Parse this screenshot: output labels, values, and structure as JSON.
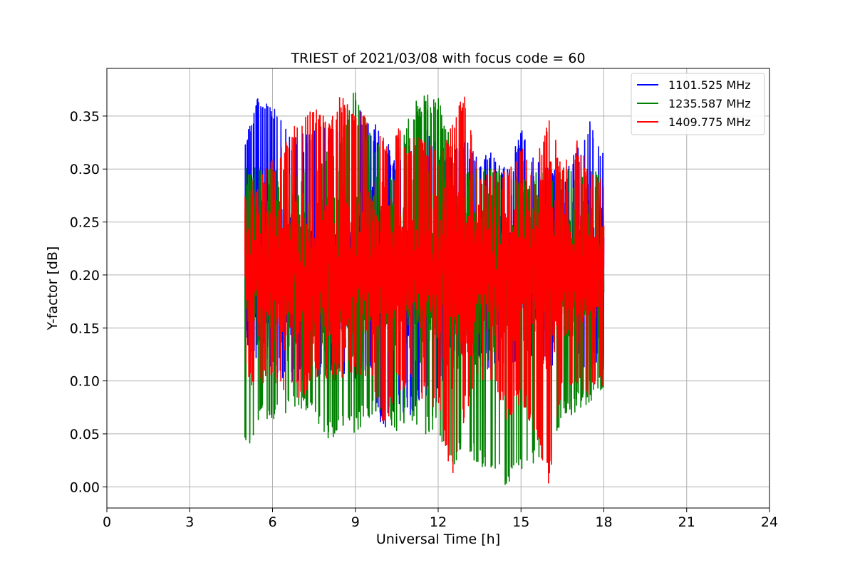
{
  "chart_data": {
    "type": "line",
    "title": "TRIEST of 2021/03/08 with focus code = 60",
    "xlabel": "Universal Time [h]",
    "ylabel": "Y-factor [dB]",
    "xlim": [
      0,
      24
    ],
    "ylim": [
      -0.02,
      0.395
    ],
    "xticks": [
      0,
      3,
      6,
      9,
      12,
      15,
      18,
      21,
      24
    ],
    "yticks": [
      0.0,
      0.05,
      0.1,
      0.15,
      0.2,
      0.25,
      0.3,
      0.35
    ],
    "grid": true,
    "legend_position": "top-right",
    "x_range_of_data": [
      5.0,
      18.0
    ],
    "series": [
      {
        "name": "1101.525 MHz",
        "color": "#0000ff",
        "x": [
          5.0,
          5.5,
          6.0,
          6.5,
          7.0,
          7.5,
          8.0,
          8.5,
          9.0,
          9.5,
          10.0,
          10.5,
          11.0,
          11.5,
          12.0,
          12.5,
          13.0,
          13.5,
          14.0,
          14.5,
          15.0,
          15.5,
          16.0,
          16.5,
          17.0,
          17.5,
          18.0
        ],
        "y_max": [
          0.33,
          0.377,
          0.362,
          0.338,
          0.333,
          0.34,
          0.342,
          0.34,
          0.362,
          0.352,
          0.33,
          0.318,
          0.335,
          0.343,
          0.32,
          0.322,
          0.33,
          0.31,
          0.318,
          0.3,
          0.338,
          0.31,
          0.3,
          0.3,
          0.317,
          0.345,
          0.315
        ],
        "y_min": [
          0.13,
          0.12,
          0.11,
          0.1,
          0.1,
          0.1,
          0.1,
          0.1,
          0.1,
          0.11,
          0.05,
          0.07,
          0.065,
          0.08,
          0.08,
          0.11,
          0.11,
          0.11,
          0.11,
          0.11,
          0.11,
          0.11,
          0.11,
          0.11,
          0.11,
          0.11,
          0.11
        ]
      },
      {
        "name": "1235.587 MHz",
        "color": "#008000",
        "x": [
          5.0,
          5.5,
          6.0,
          6.5,
          7.0,
          7.5,
          8.0,
          8.5,
          9.0,
          9.5,
          10.0,
          10.5,
          11.0,
          11.5,
          12.0,
          12.5,
          13.0,
          13.5,
          14.0,
          14.5,
          15.0,
          15.5,
          16.0,
          16.5,
          17.0,
          17.5,
          18.0
        ],
        "y_max": [
          0.3,
          0.31,
          0.3,
          0.3,
          0.3,
          0.3,
          0.32,
          0.34,
          0.377,
          0.34,
          0.32,
          0.3,
          0.36,
          0.372,
          0.37,
          0.33,
          0.3,
          0.3,
          0.3,
          0.3,
          0.29,
          0.3,
          0.3,
          0.3,
          0.3,
          0.3,
          0.3
        ],
        "y_min": [
          0.03,
          0.06,
          0.06,
          0.07,
          0.075,
          0.065,
          0.04,
          0.055,
          0.05,
          0.065,
          0.07,
          0.05,
          0.06,
          0.05,
          0.05,
          0.02,
          0.03,
          0.02,
          0.01,
          0.0,
          0.01,
          0.02,
          0.02,
          0.06,
          0.07,
          0.08,
          0.09
        ]
      },
      {
        "name": "1409.775 MHz",
        "color": "#ff0000",
        "x": [
          5.0,
          5.5,
          6.0,
          6.5,
          7.0,
          7.5,
          8.0,
          8.5,
          9.0,
          9.5,
          10.0,
          10.5,
          11.0,
          11.5,
          12.0,
          12.5,
          13.0,
          13.5,
          14.0,
          14.5,
          15.0,
          15.5,
          16.0,
          16.5,
          17.0,
          17.5,
          18.0
        ],
        "y_max": [
          0.28,
          0.3,
          0.31,
          0.33,
          0.35,
          0.36,
          0.35,
          0.372,
          0.35,
          0.36,
          0.33,
          0.34,
          0.33,
          0.33,
          0.32,
          0.35,
          0.377,
          0.3,
          0.3,
          0.3,
          0.33,
          0.3,
          0.357,
          0.3,
          0.33,
          0.3,
          0.3
        ],
        "y_min": [
          0.1,
          0.09,
          0.1,
          0.09,
          0.08,
          0.1,
          0.1,
          0.1,
          0.1,
          0.1,
          0.05,
          0.09,
          0.09,
          0.08,
          0.07,
          0.0,
          0.07,
          0.1,
          0.1,
          0.06,
          0.08,
          0.05,
          0.0,
          0.09,
          0.09,
          0.08,
          0.09
        ]
      }
    ]
  }
}
